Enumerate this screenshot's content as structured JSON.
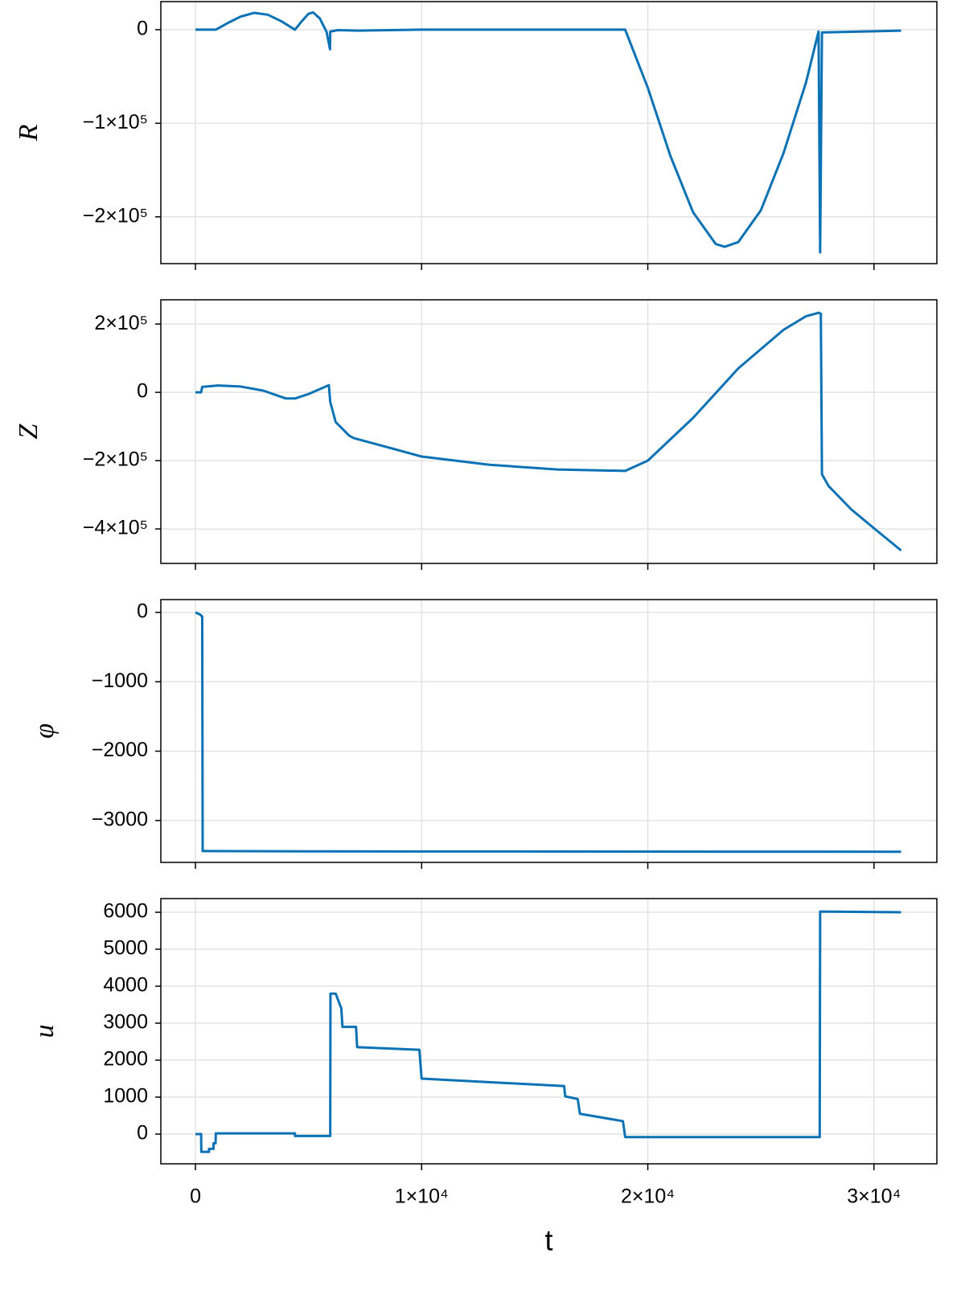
{
  "chart_data": [
    {
      "type": "line",
      "ylabel": "R",
      "color": "#0b72b5",
      "grid": true,
      "xlim": [
        -1530,
        32780
      ],
      "xticks": [
        0,
        10000,
        20000,
        30000
      ],
      "ylim": [
        -250000,
        30000
      ],
      "yticks": [
        {
          "value": -200000,
          "label": "−2×10⁵"
        },
        {
          "value": -100000,
          "label": "−1×10⁵"
        },
        0
      ],
      "x": [
        0,
        900,
        1500,
        2000,
        2600,
        3200,
        3800,
        4400,
        4700,
        5000,
        5200,
        5500,
        5800,
        5950,
        5960,
        6300,
        7200,
        10000,
        17000,
        19000,
        20000,
        21000,
        22000,
        23000,
        23400,
        24000,
        25000,
        26000,
        27000,
        27550,
        27620,
        27700,
        31200
      ],
      "values": [
        0,
        0,
        8000,
        14000,
        18000,
        16000,
        9000,
        0,
        9000,
        17000,
        18500,
        12000,
        -2500,
        -21000,
        -2000,
        -500,
        -1000,
        0,
        0,
        0,
        -62000,
        -135000,
        -195000,
        -229000,
        -232000,
        -227000,
        -193000,
        -132000,
        -56000,
        -2000,
        -238000,
        -3000,
        -1000
      ]
    },
    {
      "type": "line",
      "ylabel": "Z",
      "color": "#0b72b5",
      "grid": true,
      "xlim": [
        -1530,
        32780
      ],
      "xticks": [
        0,
        10000,
        20000,
        30000
      ],
      "ylim": [
        -501000,
        271000
      ],
      "yticks": [
        {
          "value": -400000,
          "label": "−4×10⁵"
        },
        {
          "value": -200000,
          "label": "−2×10⁵"
        },
        0,
        {
          "value": 200000,
          "label": "2×10⁵"
        }
      ],
      "x": [
        0,
        250,
        300,
        1000,
        2000,
        3000,
        4000,
        4400,
        5000,
        5900,
        5960,
        6200,
        6800,
        7000,
        10000,
        13000,
        16000,
        19000,
        20000,
        22000,
        24000,
        26000,
        27000,
        27550,
        27650,
        27700,
        28000,
        29000,
        30000,
        31200
      ],
      "values": [
        0,
        0,
        16000,
        20000,
        17000,
        5000,
        -18000,
        -18000,
        -5000,
        21000,
        -28000,
        -87000,
        -127000,
        -134000,
        -188000,
        -212000,
        -226000,
        -230000,
        -200000,
        -75000,
        70000,
        183000,
        223000,
        233000,
        230000,
        -240000,
        -275000,
        -343000,
        -398000,
        -463000
      ]
    },
    {
      "type": "line",
      "ylabel": "φ",
      "color": "#0b72b5",
      "grid": true,
      "xlim": [
        -1530,
        32780
      ],
      "xticks": [
        0,
        10000,
        20000,
        30000
      ],
      "ylim": [
        -3604,
        185
      ],
      "yticks": [
        {
          "value": -3000,
          "label": "−3000"
        },
        {
          "value": -2000,
          "label": "−2000"
        },
        {
          "value": -1000,
          "label": "−1000"
        },
        0
      ],
      "x": [
        0,
        200,
        300,
        320,
        6000,
        31200
      ],
      "values": [
        0,
        -30,
        -60,
        -3440,
        -3445,
        -3450
      ]
    },
    {
      "type": "line",
      "ylabel": "u",
      "xlabel": "t",
      "color": "#0b72b5",
      "grid": true,
      "xlim": [
        -1530,
        32780
      ],
      "xticks": [
        0,
        {
          "value": 10000,
          "label": "1×10⁴"
        },
        {
          "value": 20000,
          "label": "2×10⁴"
        },
        {
          "value": 30000,
          "label": "3×10⁴"
        }
      ],
      "ylim": [
        -804,
        6370
      ],
      "yticks": [
        0,
        1000,
        2000,
        3000,
        4000,
        5000,
        6000
      ],
      "x": [
        0,
        250,
        260,
        600,
        600,
        800,
        800,
        890,
        900,
        4400,
        4400,
        5960,
        5970,
        6200,
        6450,
        6500,
        7100,
        7150,
        9900,
        10000,
        16300,
        16350,
        16900,
        17000,
        18900,
        19000,
        27600,
        27620,
        31200
      ],
      "values": [
        0,
        0,
        -480,
        -480,
        -400,
        -400,
        -250,
        -250,
        20,
        20,
        -50,
        -50,
        3800,
        3800,
        3400,
        2900,
        2900,
        2350,
        2280,
        1500,
        1300,
        1020,
        950,
        550,
        350,
        -80,
        -80,
        6020,
        6000
      ]
    }
  ]
}
